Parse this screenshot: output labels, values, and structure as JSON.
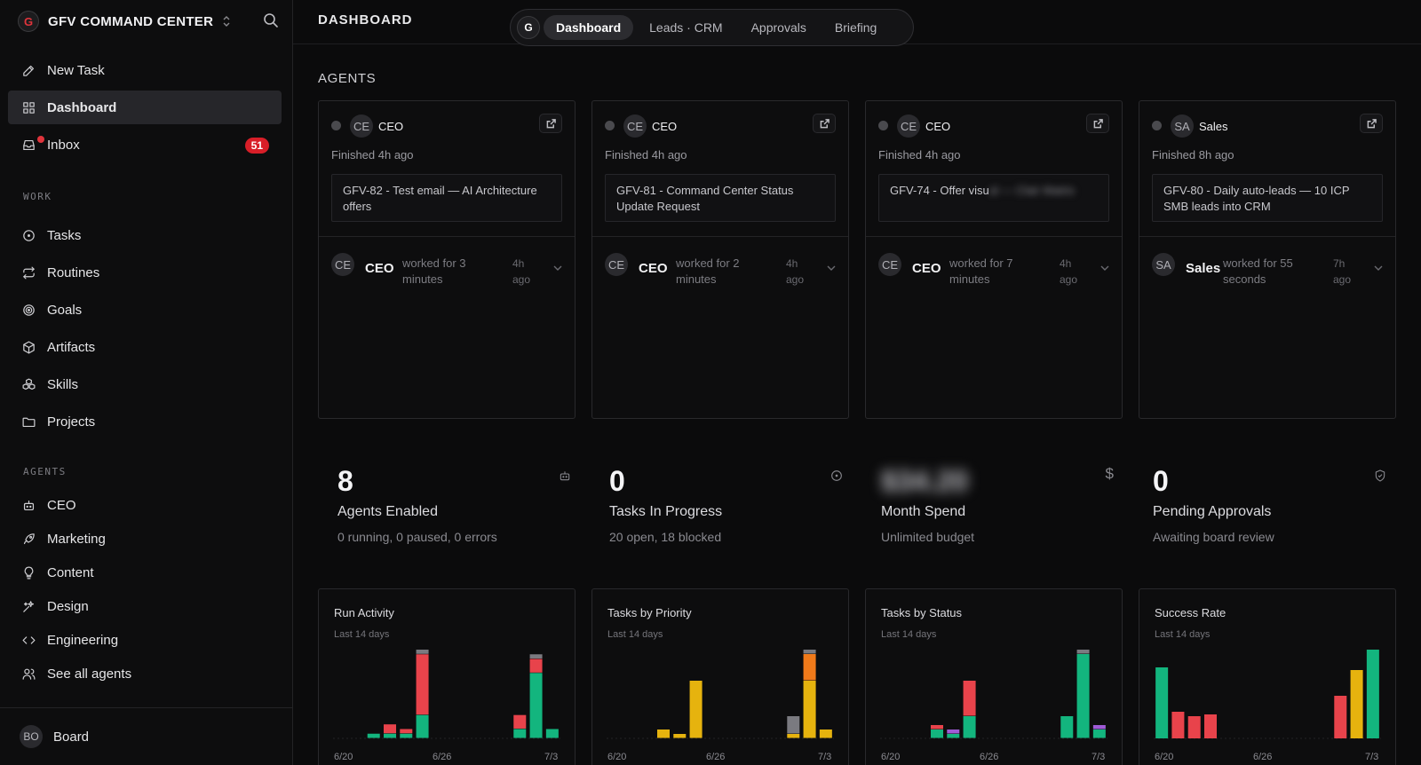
{
  "app": {
    "brand": "GFV COMMAND CENTER",
    "brand_logo": "G",
    "page_title": "DASHBOARD"
  },
  "sidebar": {
    "primary": [
      {
        "label": "New Task",
        "icon": "edit-icon"
      },
      {
        "label": "Dashboard",
        "icon": "grid-icon",
        "active": true
      },
      {
        "label": "Inbox",
        "icon": "inbox-icon",
        "badge": "51"
      }
    ],
    "work_label": "WORK",
    "work": [
      {
        "label": "Tasks",
        "icon": "circle-dot-icon"
      },
      {
        "label": "Routines",
        "icon": "repeat-icon"
      },
      {
        "label": "Goals",
        "icon": "target-icon"
      },
      {
        "label": "Artifacts",
        "icon": "box-icon"
      },
      {
        "label": "Skills",
        "icon": "boxes-icon"
      },
      {
        "label": "Projects",
        "icon": "folder-icon"
      }
    ],
    "agents_label": "AGENTS",
    "agents": [
      {
        "label": "CEO",
        "icon": "bot-icon"
      },
      {
        "label": "Marketing",
        "icon": "rocket-icon"
      },
      {
        "label": "Content",
        "icon": "lightbulb-icon"
      },
      {
        "label": "Design",
        "icon": "sparkle-icon"
      },
      {
        "label": "Engineering",
        "icon": "code-icon"
      },
      {
        "label": "See all agents",
        "icon": "users-icon"
      }
    ],
    "footer": {
      "avatar": "BO",
      "name": "Board"
    }
  },
  "tabs": {
    "logo": "G",
    "items": [
      "Dashboard",
      "Leads · CRM",
      "Approvals",
      "Briefing"
    ],
    "active": "Dashboard"
  },
  "agents_section": {
    "title": "AGENTS",
    "cards": [
      {
        "initials": "CE",
        "name": "CEO",
        "finished": "Finished 4h ago",
        "task": "GFV-82 - Test email — AI Architecture offers",
        "run_name": "CEO",
        "run_desc": "worked for 3 minutes",
        "run_time": "4h ago"
      },
      {
        "initials": "CE",
        "name": "CEO",
        "finished": "Finished 4h ago",
        "task": "GFV-81 - Command Center Status Update Request",
        "run_name": "CEO",
        "run_desc": "worked for 2 minutes",
        "run_time": "4h ago"
      },
      {
        "initials": "CE",
        "name": "CEO",
        "finished": "Finished 4h ago",
        "task_visible": "GFV-74 - Offer visu",
        "task_blurred": "al — Clair Matrix",
        "run_name": "CEO",
        "run_desc": "worked for 7 minutes",
        "run_time": "4h ago"
      },
      {
        "initials": "SA",
        "name": "Sales",
        "finished": "Finished 8h ago",
        "task": "GFV-80 - Daily auto-leads — 10 ICP SMB leads into CRM",
        "run_name": "Sales",
        "run_desc": "worked for 55 seconds",
        "run_time": "7h ago"
      }
    ]
  },
  "stats": [
    {
      "value": "8",
      "label": "Agents Enabled",
      "sub": "0 running, 0 paused, 0 errors",
      "icon": "bot-icon"
    },
    {
      "value": "0",
      "label": "Tasks In Progress",
      "sub": "20 open, 18 blocked",
      "icon": "circle-dot-icon"
    },
    {
      "value": "$34.20",
      "label": "Month Spend",
      "sub": "Unlimited budget",
      "icon": "dollar-icon",
      "blurred": true
    },
    {
      "value": "0",
      "label": "Pending Approvals",
      "sub": "Awaiting board review",
      "icon": "shield-check-icon"
    }
  ],
  "colors": {
    "green": "#13b57e",
    "red": "#e8434b",
    "yellow": "#e6b30e",
    "orange": "#f07a1a",
    "gray": "#7a7a80",
    "purple": "#9f5bd6",
    "blue": "#4a7fe0"
  },
  "chart_data": [
    {
      "type": "bar",
      "stacked": true,
      "title": "Run Activity",
      "subtitle": "Last 14 days",
      "categories": [
        "6/20",
        "6/21",
        "6/22",
        "6/23",
        "6/24",
        "6/25",
        "6/26",
        "6/27",
        "6/28",
        "6/29",
        "6/30",
        "7/1",
        "7/2",
        "7/3"
      ],
      "x_tick_labels": [
        "6/20",
        "6/26",
        "7/3"
      ],
      "series": [
        {
          "color": "green",
          "values": [
            0,
            0,
            1,
            1,
            1,
            5,
            0,
            0,
            0,
            0,
            0,
            2,
            14,
            2
          ]
        },
        {
          "color": "red",
          "values": [
            0,
            0,
            0,
            2,
            1,
            13,
            0,
            0,
            0,
            0,
            0,
            3,
            3,
            0
          ]
        },
        {
          "color": "gray",
          "values": [
            0,
            0,
            0,
            0,
            0,
            1,
            0,
            0,
            0,
            0,
            0,
            0,
            1,
            0
          ]
        }
      ]
    },
    {
      "type": "bar",
      "stacked": true,
      "title": "Tasks by Priority",
      "subtitle": "Last 14 days",
      "categories": [
        "6/20",
        "6/21",
        "6/22",
        "6/23",
        "6/24",
        "6/25",
        "6/26",
        "6/27",
        "6/28",
        "6/29",
        "6/30",
        "7/1",
        "7/2",
        "7/3"
      ],
      "x_tick_labels": [
        "6/20",
        "6/26",
        "7/3"
      ],
      "series": [
        {
          "color": "yellow",
          "values": [
            0,
            0,
            0,
            2,
            1,
            13,
            0,
            0,
            0,
            0,
            0,
            1,
            13,
            2
          ]
        },
        {
          "color": "orange",
          "values": [
            0,
            0,
            0,
            0,
            0,
            0,
            0,
            0,
            0,
            0,
            0,
            0,
            6,
            0
          ]
        },
        {
          "color": "gray",
          "values": [
            0,
            0,
            0,
            0,
            0,
            0,
            0,
            0,
            0,
            0,
            0,
            4,
            1,
            0
          ]
        }
      ]
    },
    {
      "type": "bar",
      "stacked": true,
      "title": "Tasks by Status",
      "subtitle": "Last 14 days",
      "categories": [
        "6/20",
        "6/21",
        "6/22",
        "6/23",
        "6/24",
        "6/25",
        "6/26",
        "6/27",
        "6/28",
        "6/29",
        "6/30",
        "7/1",
        "7/2",
        "7/3"
      ],
      "x_tick_labels": [
        "6/20",
        "6/26",
        "7/3"
      ],
      "series": [
        {
          "color": "green",
          "values": [
            0,
            0,
            0,
            2,
            1,
            5,
            0,
            0,
            0,
            0,
            0,
            5,
            19,
            2
          ]
        },
        {
          "color": "purple",
          "values": [
            0,
            0,
            0,
            0,
            1,
            0,
            0,
            0,
            0,
            0,
            0,
            0,
            0,
            1
          ]
        },
        {
          "color": "red",
          "values": [
            0,
            0,
            0,
            1,
            0,
            8,
            0,
            0,
            0,
            0,
            0,
            0,
            0,
            0
          ]
        },
        {
          "color": "gray",
          "values": [
            0,
            0,
            0,
            0,
            0,
            0,
            0,
            0,
            0,
            0,
            0,
            0,
            1,
            0
          ]
        }
      ]
    },
    {
      "type": "bar",
      "stacked": false,
      "title": "Success Rate",
      "subtitle": "Last 14 days",
      "categories": [
        "6/20",
        "6/21",
        "6/22",
        "6/23",
        "6/24",
        "6/25",
        "6/26",
        "6/27",
        "6/28",
        "6/29",
        "6/30",
        "7/1",
        "7/2",
        "7/3"
      ],
      "x_tick_labels": [
        "6/20",
        "6/26",
        "7/3"
      ],
      "bars": [
        {
          "color": "green",
          "value": 80
        },
        {
          "color": "red",
          "value": 30
        },
        {
          "color": "red",
          "value": 25
        },
        {
          "color": "red",
          "value": 27
        },
        {
          "color": "none",
          "value": 0
        },
        {
          "color": "none",
          "value": 0
        },
        {
          "color": "none",
          "value": 0
        },
        {
          "color": "none",
          "value": 0
        },
        {
          "color": "none",
          "value": 0
        },
        {
          "color": "none",
          "value": 0
        },
        {
          "color": "none",
          "value": 0
        },
        {
          "color": "red",
          "value": 48
        },
        {
          "color": "yellow",
          "value": 77
        },
        {
          "color": "green",
          "value": 100
        }
      ]
    }
  ]
}
